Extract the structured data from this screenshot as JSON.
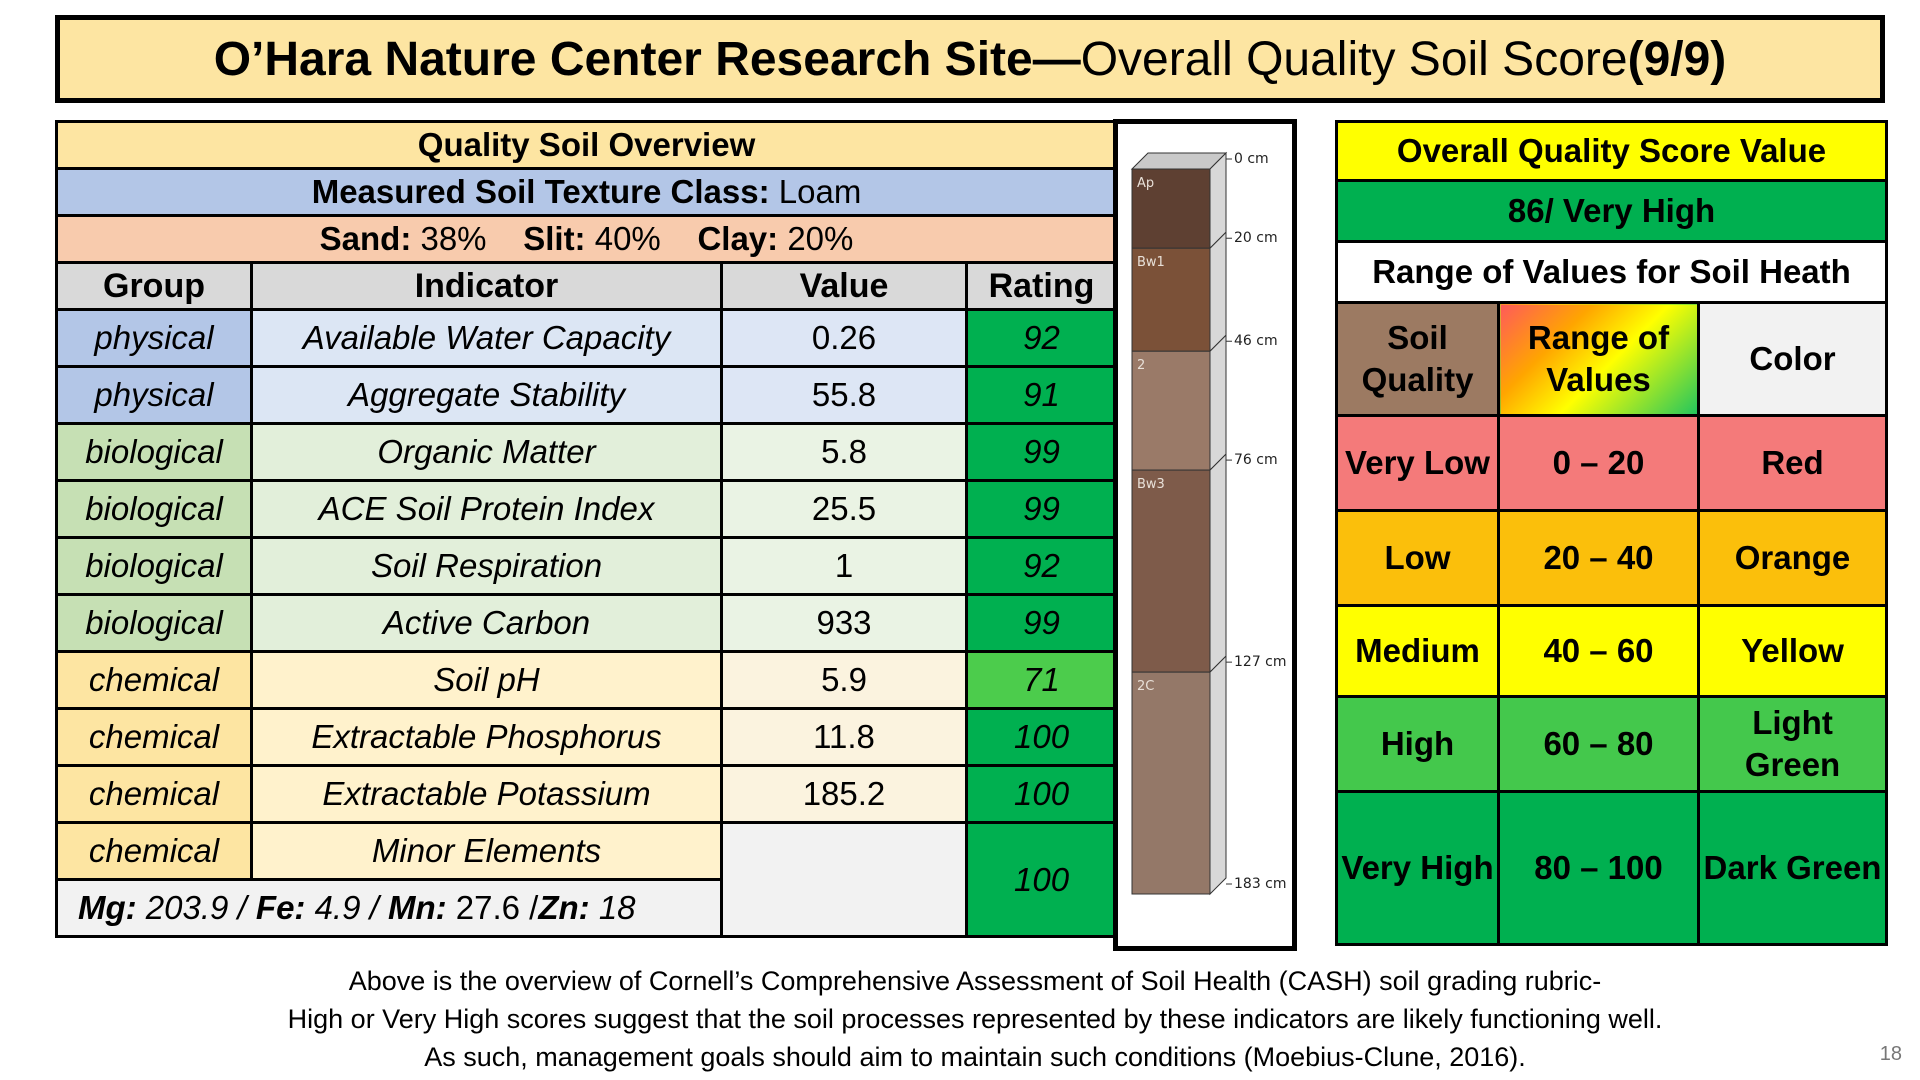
{
  "title": {
    "bold": "O’Hara Nature Center Research Site—",
    "normal": "Overall Quality Soil Score ",
    "bold_end": "(9/9)"
  },
  "overview": {
    "header": "Quality Soil Overview",
    "texture_label": "Measured Soil Texture Class:",
    "texture_value": " Loam",
    "sand_label": "Sand:",
    "sand_value": " 38%",
    "silt_label": "Slit:",
    "silt_value": " 40%",
    "clay_label": "Clay:",
    "clay_value": " 20%"
  },
  "table_headers": [
    "Group",
    "Indicator",
    "Value",
    "Rating"
  ],
  "rows": [
    {
      "group": "physical",
      "indicator": "Available Water Capacity",
      "value": "0.26",
      "rating": "92"
    },
    {
      "group": "physical",
      "indicator": "Aggregate Stability",
      "value": "55.8",
      "rating": "91"
    },
    {
      "group": "biological",
      "indicator": "Organic Matter",
      "value": "5.8",
      "rating": "99"
    },
    {
      "group": "biological",
      "indicator": "ACE Soil Protein Index",
      "value": "25.5",
      "rating": "99"
    },
    {
      "group": "biological",
      "indicator": "Soil Respiration",
      "value": "1",
      "rating": "92"
    },
    {
      "group": "biological",
      "indicator": "Active Carbon",
      "value": "933",
      "rating": "99"
    },
    {
      "group": "chemical",
      "indicator": "Soil pH",
      "value": "5.9",
      "rating": "71"
    },
    {
      "group": "chemical",
      "indicator": "Extractable Phosphorus",
      "value": "11.8",
      "rating": "100"
    },
    {
      "group": "chemical",
      "indicator": "Extractable Potassium",
      "value": "185.2",
      "rating": "100"
    },
    {
      "group": "chemical",
      "indicator": "Minor Elements",
      "value": "",
      "rating": "100"
    }
  ],
  "minor": {
    "mg_l": "Mg:",
    "mg_v": " 203.9 / ",
    "fe_l": "Fe:",
    "fe_v": " 4.9 / ",
    "mn_l": "Mn:",
    "mn_v": " 27.6  /",
    "zn_l": "Zn:",
    "zn_v": " 18"
  },
  "profile": {
    "horizons": [
      {
        "name": "Ap",
        "top": 0,
        "bottom": 20,
        "color": "#5e4032"
      },
      {
        "name": "Bw1",
        "top": 20,
        "bottom": 46,
        "color": "#7b5138"
      },
      {
        "name": "2",
        "top": 46,
        "bottom": 76,
        "color": "#9a7a68"
      },
      {
        "name": "Bw3",
        "top": 76,
        "bottom": 127,
        "color": "#7e5b4a"
      },
      {
        "name": "2C",
        "top": 127,
        "bottom": 183,
        "color": "#947868"
      }
    ],
    "depth_labels": [
      "0 cm",
      "20 cm",
      "46 cm",
      "76 cm",
      "127 cm",
      "183 cm"
    ]
  },
  "score": {
    "header": "Overall Quality Score Value",
    "value": "86/ Very High",
    "range_header": "Range of Values for Soil Heath",
    "col1": "Soil Quality",
    "col2": "Range of Values",
    "col3": "Color",
    "levels": [
      {
        "quality": "Very Low",
        "range": "0 – 20",
        "color": "Red",
        "bg": "#f47a7a"
      },
      {
        "quality": "Low",
        "range": "20 – 40",
        "color": "Orange",
        "bg": "#fbbf0b"
      },
      {
        "quality": "Medium",
        "range": "40 – 60",
        "color": "Yellow",
        "bg": "#ffff00"
      },
      {
        "quality": "High",
        "range": "60 – 80",
        "color": "Light Green",
        "bg": "#44c84c"
      },
      {
        "quality": "Very High",
        "range": "80 – 100",
        "color": "Dark Green",
        "bg": "#00b050"
      }
    ]
  },
  "footer": [
    "Above is the overview of Cornell’s Comprehensive Assessment of Soil Health (CASH) soil grading rubric-",
    "High or Very High scores suggest that the soil processes represented by these indicators are likely functioning well.",
    "As such, management goals should aim to maintain such conditions (Moebius-Clune, 2016)."
  ],
  "page_number": "18"
}
